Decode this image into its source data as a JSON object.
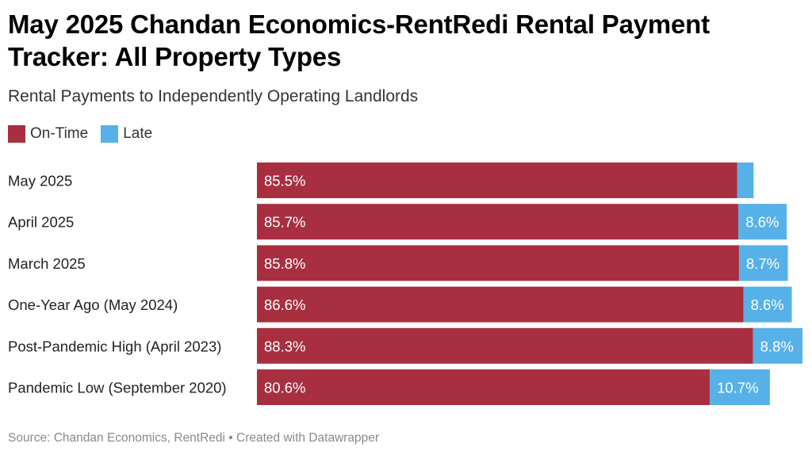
{
  "title": "May 2025 Chandan Economics-RentRedi Rental Payment Tracker: All Property Types",
  "subtitle": "Rental Payments to Independently Operating Landlords",
  "source": "Source: Chandan Economics, RentRedi • Created with Datawrapper",
  "legend": {
    "ontime_label": "On-Time",
    "late_label": "Late"
  },
  "colors": {
    "ontime": "#a82f40",
    "late": "#56b1e8"
  },
  "chart_data": {
    "type": "bar",
    "orientation": "horizontal",
    "stacked": true,
    "categories": [
      "May 2025",
      "April 2025",
      "March 2025",
      "One-Year Ago (May 2024)",
      "Post-Pandemic High (April 2023)",
      "Pandemic Low (September 2020)"
    ],
    "series": [
      {
        "name": "On-Time",
        "values": [
          85.5,
          85.7,
          85.8,
          86.6,
          88.3,
          80.6
        ],
        "labels": [
          "85.5%",
          "85.7%",
          "85.8%",
          "86.6%",
          "88.3%",
          "80.6%"
        ]
      },
      {
        "name": "Late",
        "values": [
          2.9,
          8.6,
          8.7,
          8.6,
          8.8,
          10.7
        ],
        "labels": [
          "",
          "8.6%",
          "8.7%",
          "8.6%",
          "8.8%",
          "10.7%"
        ]
      }
    ],
    "xlim": [
      0,
      97.1
    ],
    "grid": false,
    "legend_position": "top-left"
  }
}
